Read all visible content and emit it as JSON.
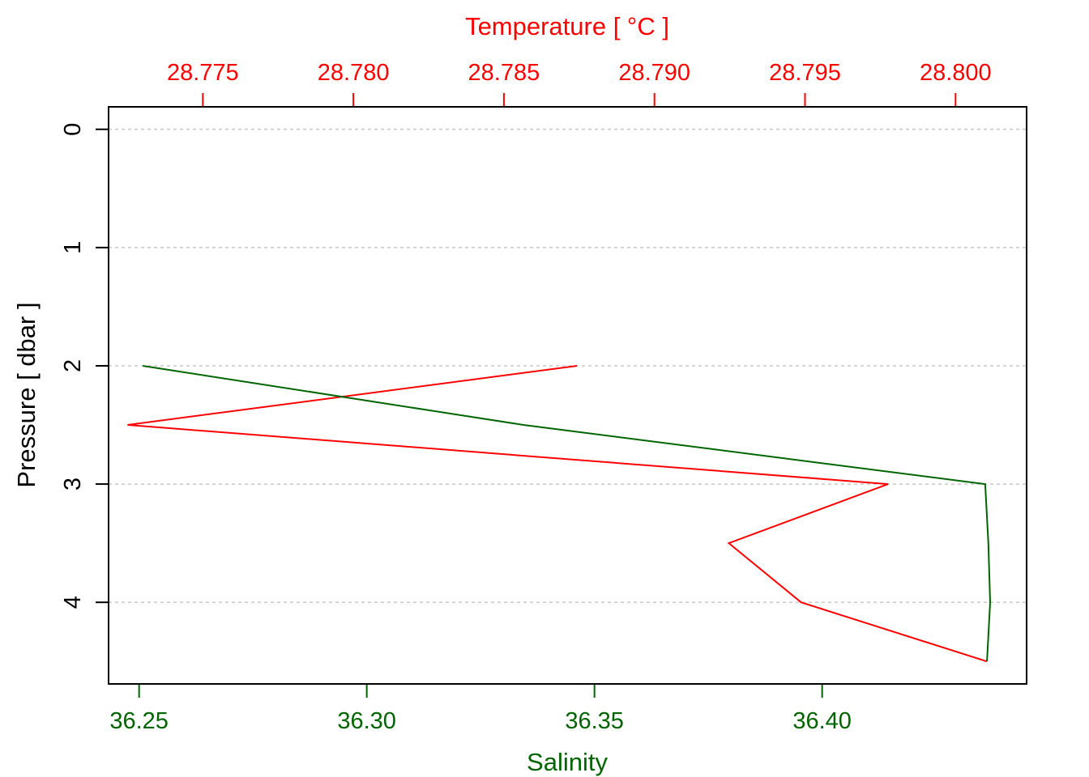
{
  "chart_data": {
    "type": "line",
    "top_axis": {
      "label": "Temperature [ °C ]",
      "ticks": [
        28.775,
        28.78,
        28.785,
        28.79,
        28.795,
        28.8
      ],
      "tick_labels": [
        "28.775",
        "28.780",
        "28.785",
        "28.790",
        "28.795",
        "28.800"
      ],
      "color": "#ff0000",
      "range": [
        28.77187,
        28.80236
      ]
    },
    "bottom_axis": {
      "label": "Salinity",
      "ticks": [
        36.25,
        36.3,
        36.35,
        36.4
      ],
      "tick_labels": [
        "36.25",
        "36.30",
        "36.35",
        "36.40"
      ],
      "color": "#006400",
      "range": [
        36.2433,
        36.4449
      ]
    },
    "y_axis": {
      "label": "Pressure [ dbar ]",
      "ticks": [
        0,
        1,
        2,
        3,
        4
      ],
      "tick_labels": [
        "0",
        "1",
        "2",
        "3",
        "4"
      ],
      "range": [
        4.69,
        -0.19
      ],
      "reversed": true,
      "grid": true
    },
    "series": [
      {
        "axis": "top",
        "color": "#ff0000",
        "pressure": [
          2.0,
          2.5,
          3.0,
          3.5,
          4.0,
          4.5
        ],
        "values": [
          28.78743,
          28.7725,
          28.79776,
          28.79247,
          28.79487,
          28.80104
        ]
      },
      {
        "axis": "bottom",
        "color": "#006400",
        "pressure": [
          2.0,
          2.5,
          3.0,
          3.5,
          4.0,
          4.5
        ],
        "values": [
          36.2508,
          36.3344,
          36.4358,
          36.4365,
          36.4369,
          36.4362
        ]
      }
    ]
  }
}
